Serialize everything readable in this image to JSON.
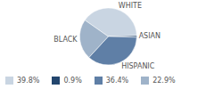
{
  "chart_data": {
    "type": "pie",
    "categories": [
      "WHITE",
      "ASIAN",
      "HISPANIC",
      "BLACK"
    ],
    "values": [
      39.8,
      0.9,
      36.4,
      22.9
    ],
    "value_labels": [
      "39.8%",
      "0.9%",
      "36.4%",
      "22.9%"
    ],
    "colors": [
      "#c9d5e2",
      "#23466e",
      "#5f7fa6",
      "#9fb3c9"
    ],
    "legend": "bottom"
  }
}
